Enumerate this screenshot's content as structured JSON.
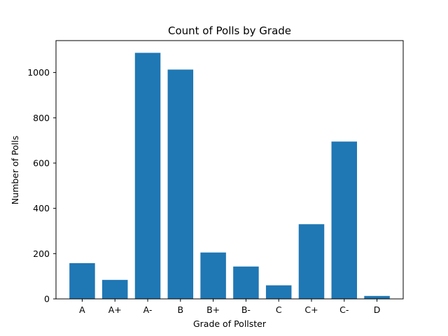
{
  "chart_data": {
    "type": "bar",
    "title": "Count of Polls by Grade",
    "xlabel": "Grade of Pollster",
    "ylabel": "Number of Polls",
    "categories": [
      "A",
      "A+",
      "A-",
      "B",
      "B+",
      "B-",
      "C",
      "C+",
      "C-",
      "D"
    ],
    "values": [
      158,
      84,
      1087,
      1013,
      205,
      143,
      60,
      330,
      695,
      13
    ],
    "ylim": [
      0,
      1141
    ],
    "yticks": [
      0,
      200,
      400,
      600,
      800,
      1000
    ],
    "grid": false,
    "bar_color": "#1f77b4"
  }
}
